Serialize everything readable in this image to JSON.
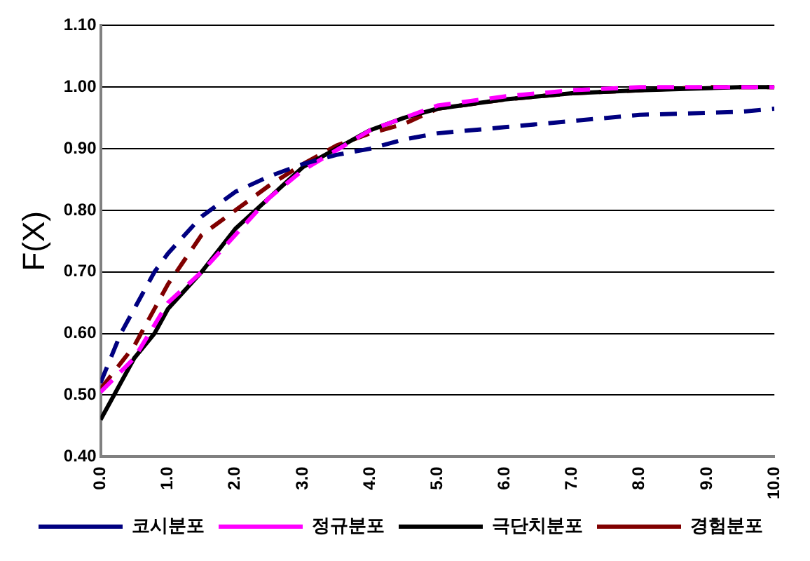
{
  "chart_data": {
    "type": "line",
    "ylabel": "F(X)",
    "xlim": [
      0,
      10
    ],
    "xticks": [
      {
        "value": 0,
        "label": "0.0"
      },
      {
        "value": 1,
        "label": "1.0"
      },
      {
        "value": 2,
        "label": "2.0"
      },
      {
        "value": 3,
        "label": "3.0"
      },
      {
        "value": 4,
        "label": "4.0"
      },
      {
        "value": 5,
        "label": "5.0"
      },
      {
        "value": 6,
        "label": "6.0"
      },
      {
        "value": 7,
        "label": "7.0"
      },
      {
        "value": 8,
        "label": "8.0"
      },
      {
        "value": 9,
        "label": "9.0"
      },
      {
        "value": 10,
        "label": "10.0"
      }
    ],
    "ylim": [
      0.4,
      1.1
    ],
    "yticks": [
      {
        "value": 0.4,
        "label": "0.40"
      },
      {
        "value": 0.5,
        "label": "0.50"
      },
      {
        "value": 0.6,
        "label": "0.60"
      },
      {
        "value": 0.7,
        "label": "0.70"
      },
      {
        "value": 0.8,
        "label": "0.80"
      },
      {
        "value": 0.9,
        "label": "0.90"
      },
      {
        "value": 1.0,
        "label": "1.00"
      },
      {
        "value": 1.1,
        "label": "1.10"
      }
    ],
    "grid": "y",
    "legend": "bottom",
    "marker": "none",
    "series": [
      {
        "name": "코시분포",
        "color": "#000080",
        "line_style": "dashed",
        "x": [
          0,
          0.3,
          0.5,
          0.8,
          1.0,
          1.5,
          2.0,
          2.5,
          3.0,
          3.5,
          4.0,
          4.5,
          5.0,
          6.0,
          7.0,
          8.0,
          9.5,
          10
        ],
        "values": [
          0.52,
          0.6,
          0.64,
          0.7,
          0.73,
          0.79,
          0.83,
          0.855,
          0.875,
          0.89,
          0.9,
          0.915,
          0.925,
          0.935,
          0.945,
          0.955,
          0.96,
          0.965
        ]
      },
      {
        "name": "정규분포",
        "color": "#ff00ff",
        "line_style": "dashed",
        "x": [
          0,
          0.5,
          1.0,
          1.5,
          2.0,
          2.5,
          3.0,
          4.0,
          5.0,
          6.0,
          7.0,
          8.0,
          10
        ],
        "values": [
          0.505,
          0.56,
          0.65,
          0.7,
          0.76,
          0.82,
          0.865,
          0.93,
          0.97,
          0.985,
          0.995,
          1.0,
          1.0
        ]
      },
      {
        "name": "극단치분포",
        "color": "#000000",
        "line_style": "solid",
        "x": [
          0,
          0.3,
          0.5,
          0.8,
          1.0,
          1.5,
          2.0,
          2.5,
          3.0,
          3.5,
          4.0,
          4.5,
          5.0,
          6.0,
          7.0,
          8.0,
          9.5,
          10
        ],
        "values": [
          0.46,
          0.52,
          0.56,
          0.6,
          0.64,
          0.7,
          0.77,
          0.82,
          0.87,
          0.9,
          0.93,
          0.95,
          0.965,
          0.98,
          0.99,
          0.995,
          1.0,
          1.0
        ]
      },
      {
        "name": "경험분포",
        "color": "#800000",
        "line_style": "dashed",
        "x": [
          0,
          0.5,
          1.0,
          1.5,
          2.0,
          2.5,
          3.0,
          3.5,
          4.0,
          4.5,
          5.0,
          6.0,
          7.0,
          8.0,
          9.0,
          10
        ],
        "values": [
          0.51,
          0.58,
          0.68,
          0.76,
          0.8,
          0.84,
          0.875,
          0.905,
          0.925,
          0.94,
          0.965,
          0.98,
          0.99,
          0.995,
          1.0,
          1.0
        ]
      }
    ]
  }
}
